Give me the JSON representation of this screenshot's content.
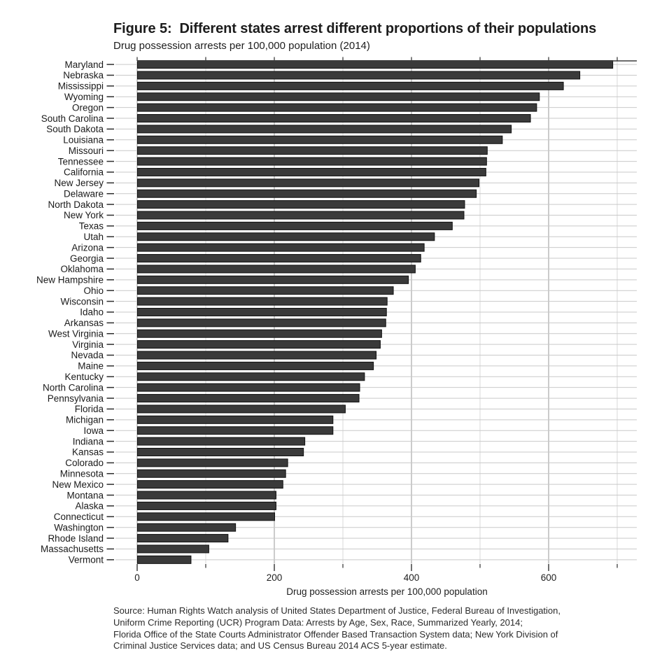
{
  "figure": {
    "title": "Figure 5:  Different states arrest different proportions of their populations",
    "subtitle": "Drug possession arrests per 100,000 population (2014)",
    "source_lines": [
      "Source: Human Rights Watch analysis of United States Department of Justice, Federal Bureau of Investigation,",
      "Uniform Crime Reporting (UCR) Program Data: Arrests by Age, Sex, Race, Summarized Yearly, 2014;",
      "Florida Office of the State Courts Administrator Offender Based Transaction System data; New York Division of",
      "Criminal Justice Services data; and US Census Bureau 2014 ACS 5-year estimate."
    ]
  },
  "chart_data": {
    "type": "bar",
    "orientation": "horizontal",
    "title": "Figure 5:  Different states arrest different proportions of their populations",
    "subtitle": "Drug possession arrests per 100,000 population (2014)",
    "xlabel": "Drug possession arrests per 100,000 population",
    "ylabel": "",
    "xlim": [
      0,
      728
    ],
    "x_major_ticks": [
      0,
      200,
      400,
      600
    ],
    "x_tick_labels": [
      "0",
      "200",
      "400",
      "600"
    ],
    "x_minor_ticks": [
      100,
      300,
      500,
      700
    ],
    "grid": true,
    "legend": false,
    "bar_color": "#3a3a3a",
    "bar_stroke": "#111111",
    "major_grid_color": "#a9a9a9",
    "minor_grid_color": "#d9d9d9",
    "row_guide_color": "#c9c9c9",
    "axis_color": "#3d3d3d",
    "categories": [
      "Maryland",
      "Nebraska",
      "Mississippi",
      "Wyoming",
      "Oregon",
      "South Carolina",
      "South Dakota",
      "Louisiana",
      "Missouri",
      "Tennessee",
      "California",
      "New Jersey",
      "Delaware",
      "North Dakota",
      "New York",
      "Texas",
      "Utah",
      "Arizona",
      "Georgia",
      "Oklahoma",
      "New Hampshire",
      "Ohio",
      "Wisconsin",
      "Idaho",
      "Arkansas",
      "West Virginia",
      "Virginia",
      "Nevada",
      "Maine",
      "Kentucky",
      "North Carolina",
      "Pennsylvania",
      "Florida",
      "Michigan",
      "Iowa",
      "Indiana",
      "Kansas",
      "Colorado",
      "Minnesota",
      "New Mexico",
      "Montana",
      "Alaska",
      "Connecticut",
      "Washington",
      "Rhode Island",
      "Massachusetts",
      "Vermont"
    ],
    "values": [
      693,
      645,
      621,
      586,
      582,
      573,
      545,
      532,
      510,
      509,
      508,
      498,
      494,
      477,
      476,
      459,
      433,
      418,
      413,
      405,
      395,
      373,
      364,
      363,
      362,
      356,
      354,
      348,
      344,
      331,
      324,
      323,
      303,
      285,
      285,
      244,
      242,
      219,
      216,
      212,
      202,
      202,
      200,
      143,
      132,
      104,
      78
    ]
  }
}
